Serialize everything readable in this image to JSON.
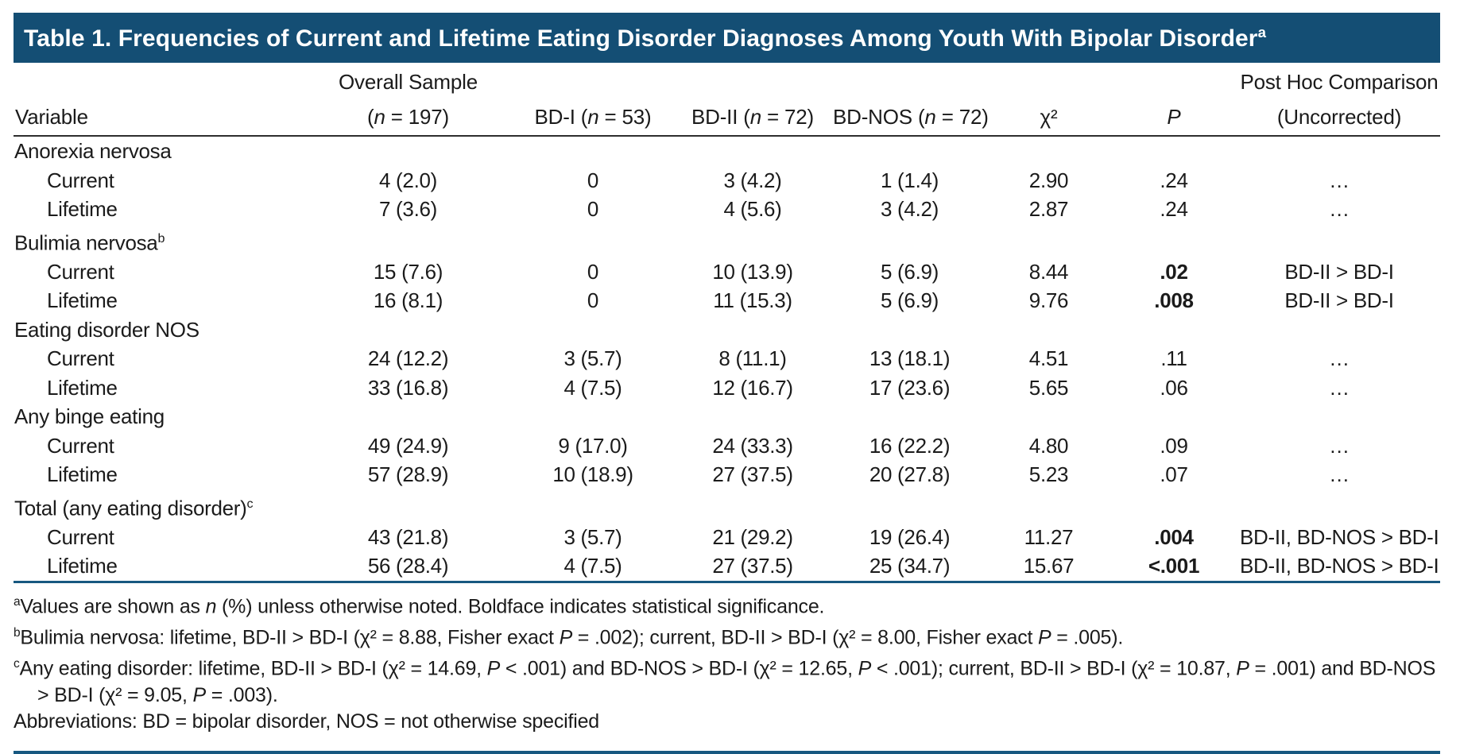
{
  "title": "Table 1. Frequencies of Current and Lifetime Eating Disorder Diagnoses Among Youth With Bipolar Disorder",
  "title_sup": "a",
  "colors": {
    "header_bg": "#144E74",
    "rule_blue": "#175880",
    "text": "#1b1b1b"
  },
  "table": {
    "columns": [
      {
        "id": "variable",
        "line1": "",
        "line2": "Variable"
      },
      {
        "id": "overall",
        "line1": "Overall Sample",
        "line2": "(n = 197)"
      },
      {
        "id": "bd-i",
        "line1": "",
        "line2": "BD-I (n = 53)"
      },
      {
        "id": "bd-ii",
        "line1": "",
        "line2": "BD-II (n = 72)"
      },
      {
        "id": "bd-nos",
        "line1": "",
        "line2": "BD-NOS (n = 72)"
      },
      {
        "id": "chi-square",
        "line1": "",
        "line2": "χ²"
      },
      {
        "id": "p-value",
        "line1": "",
        "line2": "P"
      },
      {
        "id": "post-hoc",
        "line1": "Post Hoc Comparison",
        "line2": "(Uncorrected)"
      }
    ],
    "rows": [
      {
        "type": "section",
        "label": "Anorexia nervosa",
        "sup": ""
      },
      {
        "type": "data",
        "label": "Current",
        "values": [
          "4 (2.0)",
          "0",
          "3 (4.2)",
          "1 (1.4)",
          "2.90",
          ".24",
          "…"
        ],
        "bold_p": false
      },
      {
        "type": "data",
        "label": "Lifetime",
        "values": [
          "7 (3.6)",
          "0",
          "4 (5.6)",
          "3 (4.2)",
          "2.87",
          ".24",
          "…"
        ],
        "bold_p": false
      },
      {
        "type": "section",
        "label": "Bulimia nervosa",
        "sup": "b"
      },
      {
        "type": "data",
        "label": "Current",
        "values": [
          "15 (7.6)",
          "0",
          "10 (13.9)",
          "5 (6.9)",
          "8.44",
          ".02",
          "BD-II > BD-I"
        ],
        "bold_p": true
      },
      {
        "type": "data",
        "label": "Lifetime",
        "values": [
          "16 (8.1)",
          "0",
          "11 (15.3)",
          "5 (6.9)",
          "9.76",
          ".008",
          "BD-II > BD-I"
        ],
        "bold_p": true
      },
      {
        "type": "section",
        "label": "Eating disorder NOS",
        "sup": ""
      },
      {
        "type": "data",
        "label": "Current",
        "values": [
          "24 (12.2)",
          "3 (5.7)",
          "8 (11.1)",
          "13 (18.1)",
          "4.51",
          ".11",
          "…"
        ],
        "bold_p": false
      },
      {
        "type": "data",
        "label": "Lifetime",
        "values": [
          "33 (16.8)",
          "4 (7.5)",
          "12 (16.7)",
          "17 (23.6)",
          "5.65",
          ".06",
          "…"
        ],
        "bold_p": false
      },
      {
        "type": "section",
        "label": "Any binge eating",
        "sup": ""
      },
      {
        "type": "data",
        "label": "Current",
        "values": [
          "49 (24.9)",
          "9 (17.0)",
          "24 (33.3)",
          "16 (22.2)",
          "4.80",
          ".09",
          "…"
        ],
        "bold_p": false
      },
      {
        "type": "data",
        "label": "Lifetime",
        "values": [
          "57 (28.9)",
          "10 (18.9)",
          "27 (37.5)",
          "20 (27.8)",
          "5.23",
          ".07",
          "…"
        ],
        "bold_p": false
      },
      {
        "type": "section",
        "label": "Total (any eating disorder)",
        "sup": "c"
      },
      {
        "type": "data",
        "label": "Current",
        "values": [
          "43 (21.8)",
          "3 (5.7)",
          "21 (29.2)",
          "19 (26.4)",
          "11.27",
          ".004",
          "BD-II, BD-NOS > BD-I"
        ],
        "bold_p": true
      },
      {
        "type": "data",
        "label": "Lifetime",
        "values": [
          "56 (28.4)",
          "4 (7.5)",
          "27 (37.5)",
          "25 (34.7)",
          "15.67",
          "<.001",
          "BD-II, BD-NOS > BD-I"
        ],
        "bold_p": true
      }
    ]
  },
  "footnotes": [
    {
      "sup": "a",
      "text": "Values are shown as n (%) unless otherwise noted. Boldface indicates statistical significance."
    },
    {
      "sup": "b",
      "text": "Bulimia nervosa: lifetime, BD-II > BD-I (χ² = 8.88, Fisher exact P = .002); current, BD-II > BD-I (χ² = 8.00, Fisher exact P = .005)."
    },
    {
      "sup": "c",
      "text": "Any eating disorder: lifetime, BD-II > BD-I (χ² = 14.69, P < .001) and BD-NOS > BD-I (χ² = 12.65, P < .001); current, BD-II > BD-I (χ² = 10.87, P = .001) and BD-NOS > BD-I (χ² = 9.05, P = .003)."
    },
    {
      "sup": "",
      "text": "Abbreviations: BD = bipolar disorder, NOS = not otherwise specified"
    }
  ]
}
